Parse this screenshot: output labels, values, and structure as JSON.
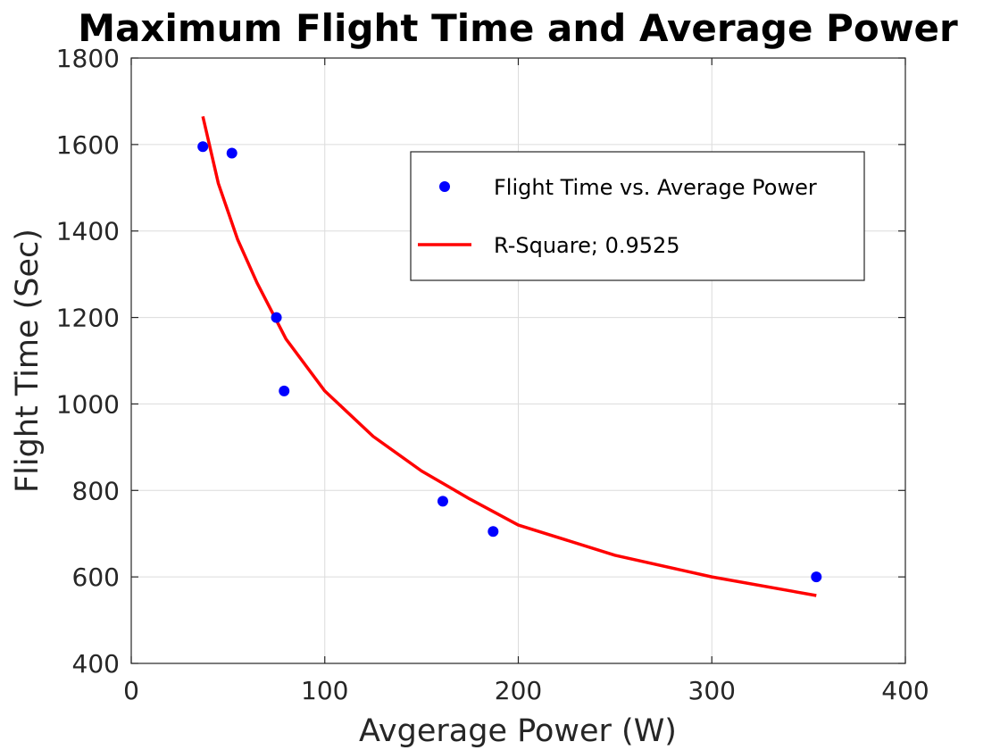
{
  "chart_data": {
    "type": "scatter",
    "title": "Maximum Flight Time and Average Power",
    "xlabel": "Avgerage Power (W)",
    "ylabel": "Flight Time (Sec)",
    "xlim": [
      0,
      400
    ],
    "ylim": [
      400,
      1800
    ],
    "xticks": [
      0,
      100,
      200,
      300,
      400
    ],
    "yticks": [
      400,
      600,
      800,
      1000,
      1200,
      1400,
      1600,
      1800
    ],
    "grid": true,
    "legend_position": "top-right",
    "legend": [
      {
        "label": "Flight Time vs. Average Power",
        "marker": "dot",
        "color": "#0000ff"
      },
      {
        "label": "R-Square; 0.9525",
        "marker": "line",
        "color": "#ff0000"
      }
    ],
    "series": [
      {
        "kind": "scatter",
        "color": "#0000ff",
        "points": [
          {
            "x": 37,
            "y": 1595
          },
          {
            "x": 52,
            "y": 1580
          },
          {
            "x": 75,
            "y": 1200
          },
          {
            "x": 79,
            "y": 1030
          },
          {
            "x": 161,
            "y": 775
          },
          {
            "x": 187,
            "y": 705
          },
          {
            "x": 354,
            "y": 600
          }
        ]
      },
      {
        "kind": "fit-curve",
        "color": "#ff0000",
        "points": [
          {
            "x": 37,
            "y": 1665
          },
          {
            "x": 45,
            "y": 1510
          },
          {
            "x": 55,
            "y": 1380
          },
          {
            "x": 65,
            "y": 1280
          },
          {
            "x": 80,
            "y": 1150
          },
          {
            "x": 100,
            "y": 1030
          },
          {
            "x": 125,
            "y": 925
          },
          {
            "x": 150,
            "y": 845
          },
          {
            "x": 175,
            "y": 780
          },
          {
            "x": 200,
            "y": 720
          },
          {
            "x": 250,
            "y": 650
          },
          {
            "x": 300,
            "y": 600
          },
          {
            "x": 354,
            "y": 557
          }
        ]
      }
    ]
  }
}
